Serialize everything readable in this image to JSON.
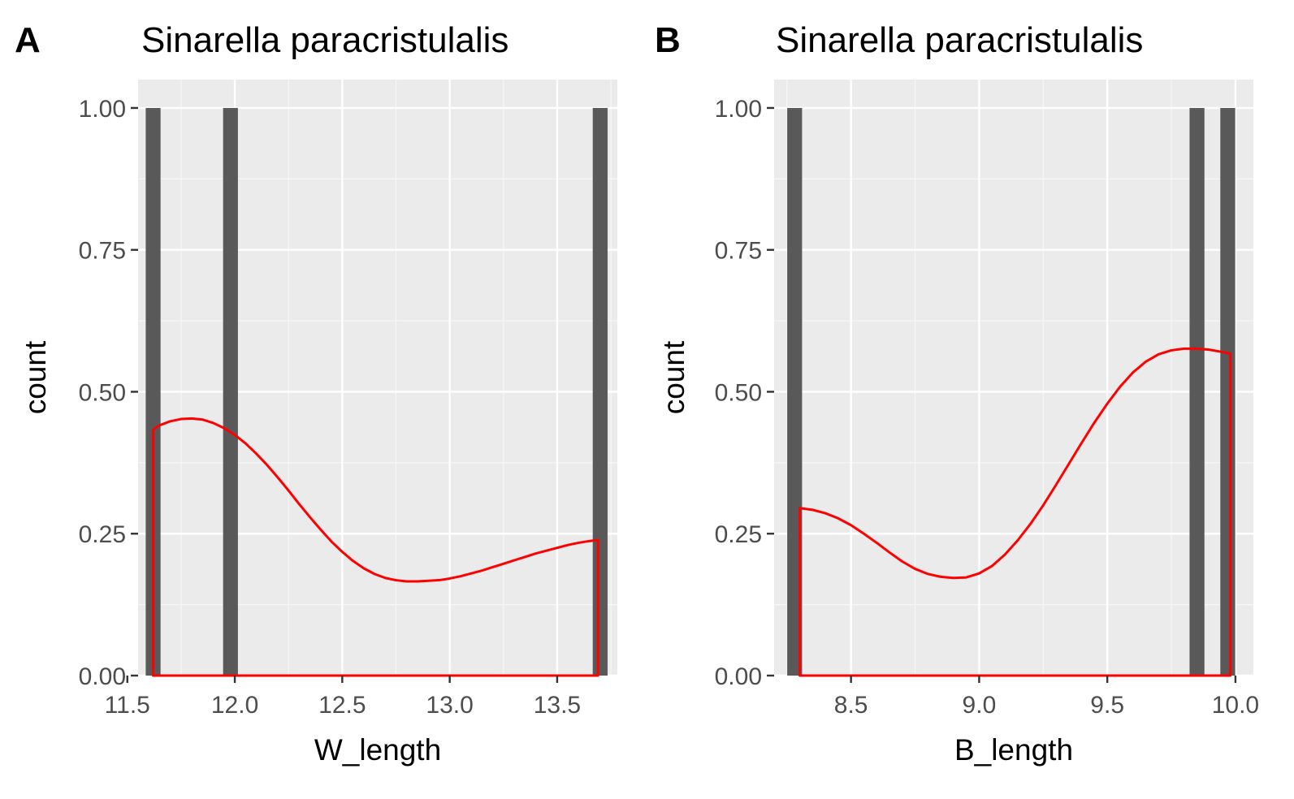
{
  "colors": {
    "panel_background": "#ebebeb",
    "major_grid": "#ffffff",
    "minor_grid": "#f7f7f7",
    "bar_fill": "#595959",
    "density_line": "#ff0000",
    "tick_text": "#4d4d4d",
    "text": "#000000"
  },
  "chart_data": [
    {
      "tag": "A",
      "type": "bar",
      "title": "Sinarella paracristulalis",
      "xlabel": "W_length",
      "ylabel": "count",
      "xlim": [
        11.55,
        13.78
      ],
      "ylim": [
        0,
        1.05
      ],
      "xticks": [
        11.5,
        12.0,
        12.5,
        13.0,
        13.5
      ],
      "xtick_labels": [
        "11.5",
        "12.0",
        "12.5",
        "13.0",
        "13.5"
      ],
      "yticks": [
        0,
        0.25,
        0.5,
        0.75,
        1.0
      ],
      "ytick_labels": [
        "0.00",
        "0.25",
        "0.50",
        "0.75",
        "1.00"
      ],
      "grid": true,
      "bars": {
        "name": "histogram",
        "bin_width": 0.069,
        "centers": [
          11.62,
          11.98,
          13.7
        ],
        "counts": [
          1,
          1,
          1
        ]
      },
      "density": {
        "name": "density",
        "x": [
          11.62,
          11.65,
          11.7,
          11.75,
          11.8,
          11.85,
          11.9,
          11.95,
          12.0,
          12.05,
          12.1,
          12.15,
          12.2,
          12.25,
          12.3,
          12.35,
          12.4,
          12.45,
          12.5,
          12.55,
          12.6,
          12.65,
          12.7,
          12.75,
          12.8,
          12.85,
          12.9,
          12.95,
          13.0,
          13.05,
          13.1,
          13.15,
          13.2,
          13.25,
          13.3,
          13.35,
          13.4,
          13.45,
          13.5,
          13.55,
          13.6,
          13.65,
          13.69
        ],
        "y": [
          0.433,
          0.441,
          0.448,
          0.452,
          0.453,
          0.451,
          0.445,
          0.436,
          0.424,
          0.409,
          0.391,
          0.371,
          0.349,
          0.326,
          0.302,
          0.279,
          0.257,
          0.236,
          0.218,
          0.202,
          0.189,
          0.179,
          0.172,
          0.168,
          0.166,
          0.166,
          0.167,
          0.168,
          0.171,
          0.175,
          0.18,
          0.185,
          0.191,
          0.197,
          0.203,
          0.209,
          0.215,
          0.22,
          0.225,
          0.23,
          0.234,
          0.237,
          0.239
        ]
      }
    },
    {
      "tag": "B",
      "type": "bar",
      "title": "Sinarella paracristulalis",
      "xlabel": "B_length",
      "ylabel": "count",
      "xlim": [
        8.2,
        10.07
      ],
      "ylim": [
        0,
        1.05
      ],
      "xticks": [
        8.5,
        9.0,
        9.5,
        10.0
      ],
      "xtick_labels": [
        "8.5",
        "9.0",
        "9.5",
        "10.0"
      ],
      "yticks": [
        0,
        0.25,
        0.5,
        0.75,
        1.0
      ],
      "ytick_labels": [
        "0.00",
        "0.25",
        "0.50",
        "0.75",
        "1.00"
      ],
      "grid": true,
      "bars": {
        "name": "histogram",
        "bin_width": 0.058,
        "centers": [
          8.28,
          9.85,
          9.97
        ],
        "counts": [
          1,
          1,
          1
        ]
      },
      "density": {
        "name": "density",
        "x": [
          8.3,
          8.35,
          8.4,
          8.45,
          8.5,
          8.55,
          8.6,
          8.65,
          8.7,
          8.75,
          8.8,
          8.85,
          8.9,
          8.95,
          9.0,
          9.05,
          9.1,
          9.15,
          9.2,
          9.25,
          9.3,
          9.35,
          9.4,
          9.45,
          9.5,
          9.55,
          9.6,
          9.65,
          9.7,
          9.75,
          9.8,
          9.85,
          9.9,
          9.95,
          9.98
        ],
        "y": [
          0.295,
          0.292,
          0.286,
          0.277,
          0.265,
          0.25,
          0.234,
          0.217,
          0.201,
          0.188,
          0.179,
          0.174,
          0.172,
          0.173,
          0.18,
          0.193,
          0.213,
          0.238,
          0.267,
          0.3,
          0.336,
          0.373,
          0.41,
          0.446,
          0.479,
          0.509,
          0.534,
          0.553,
          0.566,
          0.573,
          0.576,
          0.576,
          0.574,
          0.57,
          0.567
        ]
      }
    }
  ]
}
